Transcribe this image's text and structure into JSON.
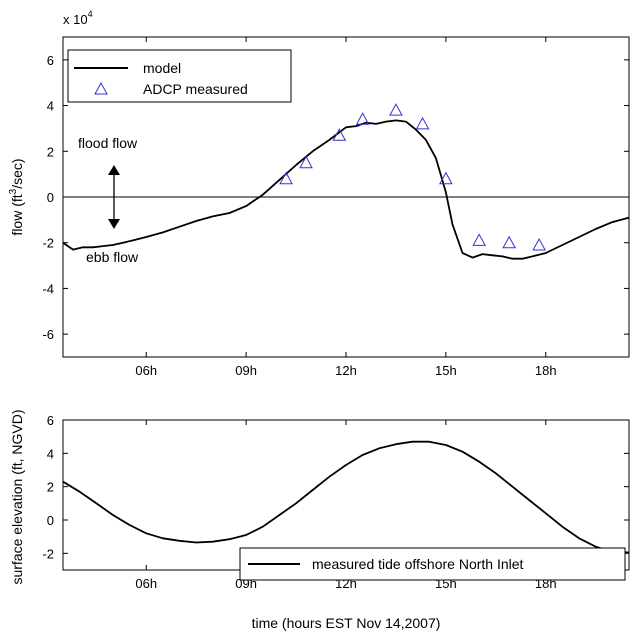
{
  "chart_data": [
    {
      "type": "line",
      "xlabel": "",
      "ylabel_parts": [
        "flow (ft",
        "3",
        "/sec)"
      ],
      "exponent": {
        "base": "x 10",
        "power": "4"
      },
      "xlim": [
        3.5,
        20.5
      ],
      "ylim": [
        -7,
        7
      ],
      "xticks": [
        6,
        9,
        12,
        15,
        18
      ],
      "xtick_labels": [
        "06h",
        "09h",
        "12h",
        "15h",
        "18h"
      ],
      "yticks": [
        6,
        4,
        2,
        0,
        -2,
        -4,
        -6
      ],
      "ytick_labels": [
        "6",
        "4",
        "2",
        "0",
        "-2",
        "-4",
        "-6"
      ],
      "zero_line": true,
      "annotations": {
        "flood": "flood flow",
        "ebb": "ebb flow"
      },
      "legend": {
        "placement": "top-left",
        "model": "model",
        "adcp": "ADCP measured"
      },
      "series": [
        {
          "name": "model",
          "color": "#000000",
          "x": [
            3.5,
            3.8,
            4.1,
            4.4,
            4.7,
            5.0,
            5.3,
            5.6,
            6.0,
            6.5,
            7.0,
            7.5,
            8.0,
            8.5,
            9.0,
            9.5,
            10.0,
            10.5,
            11.0,
            11.5,
            12.0,
            12.3,
            12.6,
            12.9,
            13.2,
            13.5,
            13.8,
            14.1,
            14.4,
            14.7,
            15.0,
            15.2,
            15.5,
            15.8,
            16.1,
            16.4,
            16.7,
            17.0,
            17.3,
            17.6,
            18.0,
            18.5,
            19.0,
            19.5,
            20.0,
            20.5
          ],
          "y": [
            -2.0,
            -2.3,
            -2.2,
            -2.2,
            -2.15,
            -2.1,
            -2.0,
            -1.9,
            -1.75,
            -1.55,
            -1.3,
            -1.05,
            -0.85,
            -0.7,
            -0.4,
            0.1,
            0.75,
            1.4,
            2.0,
            2.5,
            3.05,
            3.1,
            3.25,
            3.2,
            3.3,
            3.35,
            3.3,
            2.95,
            2.5,
            1.7,
            0.2,
            -1.2,
            -2.45,
            -2.65,
            -2.5,
            -2.55,
            -2.6,
            -2.7,
            -2.7,
            -2.6,
            -2.45,
            -2.1,
            -1.75,
            -1.4,
            -1.1,
            -0.9
          ]
        },
        {
          "name": "ADCP measured",
          "color": "#3333cc",
          "x": [
            10.2,
            10.8,
            11.8,
            12.5,
            13.5,
            14.3,
            15.0,
            16.0,
            16.9,
            17.8
          ],
          "y": [
            0.8,
            1.5,
            2.7,
            3.4,
            3.8,
            3.2,
            0.8,
            -1.9,
            -2.0,
            -2.1
          ]
        }
      ]
    },
    {
      "type": "line",
      "xlabel": "time (hours EST Nov 14,2007)",
      "ylabel": "surface elevation (ft, NGVD)",
      "xlim": [
        3.5,
        20.5
      ],
      "ylim": [
        -3,
        6
      ],
      "xticks": [
        6,
        9,
        12,
        15,
        18
      ],
      "xtick_labels": [
        "06h",
        "09h",
        "12h",
        "15h",
        "18h"
      ],
      "yticks": [
        6,
        4,
        2,
        0,
        -2
      ],
      "ytick_labels": [
        "6",
        "4",
        "2",
        "0",
        "-2"
      ],
      "legend": {
        "placement": "bottom-right",
        "tide": "measured tide offshore North Inlet"
      },
      "series": [
        {
          "name": "measured tide offshore North Inlet",
          "color": "#000000",
          "x": [
            3.5,
            4.0,
            4.5,
            5.0,
            5.5,
            6.0,
            6.5,
            7.0,
            7.5,
            8.0,
            8.5,
            9.0,
            9.5,
            10.0,
            10.5,
            11.0,
            11.5,
            12.0,
            12.5,
            13.0,
            13.5,
            14.0,
            14.5,
            15.0,
            15.5,
            16.0,
            16.5,
            17.0,
            17.5,
            18.0,
            18.5,
            19.0,
            19.5,
            20.0,
            20.5
          ],
          "y": [
            2.3,
            1.7,
            1.0,
            0.3,
            -0.3,
            -0.8,
            -1.1,
            -1.25,
            -1.35,
            -1.3,
            -1.15,
            -0.9,
            -0.4,
            0.3,
            1.0,
            1.8,
            2.6,
            3.3,
            3.9,
            4.3,
            4.55,
            4.7,
            4.7,
            4.5,
            4.1,
            3.5,
            2.8,
            2.0,
            1.2,
            0.4,
            -0.4,
            -1.1,
            -1.6,
            -1.9,
            -1.95
          ]
        }
      ]
    }
  ]
}
